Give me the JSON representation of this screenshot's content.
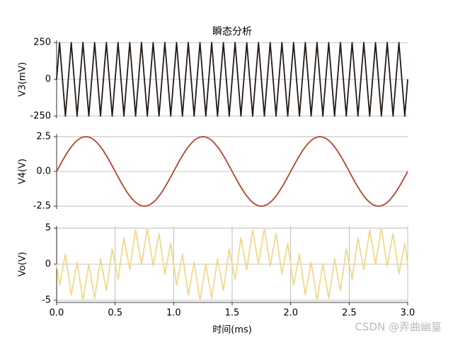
{
  "chart_data": {
    "type": "line",
    "title": "瞬态分析",
    "xlabel": "时间(ms)",
    "watermark": "CSDN @弄曲幽篁",
    "xlim": [
      0,
      3
    ],
    "xticks": [
      {
        "value": 0,
        "label": "0.0"
      },
      0.5,
      {
        "value": 1,
        "label": "1.0"
      },
      1.5,
      {
        "value": 2,
        "label": "2.0"
      },
      2.5,
      {
        "value": 3,
        "label": "3.0"
      }
    ],
    "x": [
      0,
      0.025,
      0.05,
      0.075,
      0.1,
      0.125,
      0.15,
      0.175,
      0.2,
      0.225,
      0.25,
      0.275,
      0.3,
      0.325,
      0.35,
      0.375,
      0.4,
      0.425,
      0.45,
      0.475,
      0.5,
      0.525,
      0.55,
      0.575,
      0.6,
      0.625,
      0.65,
      0.675,
      0.7,
      0.725,
      0.75,
      0.775,
      0.8,
      0.825,
      0.85,
      0.875,
      0.9,
      0.925,
      0.95,
      0.975,
      1,
      1.025,
      1.05,
      1.075,
      1.1,
      1.125,
      1.15,
      1.175,
      1.2,
      1.225,
      1.25,
      1.275,
      1.3,
      1.325,
      1.35,
      1.375,
      1.4,
      1.425,
      1.45,
      1.475,
      1.5,
      1.525,
      1.55,
      1.575,
      1.6,
      1.625,
      1.65,
      1.675,
      1.7,
      1.725,
      1.75,
      1.775,
      1.8,
      1.825,
      1.85,
      1.875,
      1.9,
      1.925,
      1.95,
      1.975,
      2,
      2.025,
      2.05,
      2.075,
      2.1,
      2.125,
      2.15,
      2.175,
      2.2,
      2.225,
      2.25,
      2.275,
      2.3,
      2.325,
      2.35,
      2.375,
      2.4,
      2.425,
      2.45,
      2.475,
      2.5,
      2.525,
      2.55,
      2.575,
      2.6,
      2.625,
      2.65,
      2.675,
      2.7,
      2.725,
      2.75,
      2.775,
      2.8,
      2.825,
      2.85,
      2.875,
      2.9,
      2.925,
      2.95,
      2.975,
      3
    ],
    "panels": [
      {
        "ylabel": "V3(mV)",
        "color": "#231a16",
        "ylim": [
          -265,
          265
        ],
        "yticks": [
          250,
          0,
          -250
        ],
        "grid": "y",
        "values": [
          0,
          250,
          0,
          -250,
          0,
          250,
          0,
          -250,
          0,
          250,
          0,
          -250,
          0,
          250,
          0,
          -250,
          0,
          250,
          0,
          -250,
          0,
          250,
          0,
          -250,
          0,
          250,
          0,
          -250,
          0,
          250,
          0,
          -250,
          0,
          250,
          0,
          -250,
          0,
          250,
          0,
          -250,
          0,
          250,
          0,
          -250,
          0,
          250,
          0,
          -250,
          0,
          250,
          0,
          -250,
          0,
          250,
          0,
          -250,
          0,
          250,
          0,
          -250,
          0,
          250,
          0,
          -250,
          0,
          250,
          0,
          -250,
          0,
          250,
          0,
          -250,
          0,
          250,
          0,
          -250,
          0,
          250,
          0,
          -250,
          0,
          250,
          0,
          -250,
          0,
          250,
          0,
          -250,
          0,
          250,
          0,
          -250,
          0,
          250,
          0,
          -250,
          0,
          250,
          0,
          -250,
          0,
          250,
          0,
          -250,
          0,
          250,
          0,
          -250,
          0,
          250,
          0,
          -250,
          0,
          250,
          0,
          -250,
          0,
          250,
          0,
          -250,
          0
        ]
      },
      {
        "ylabel": "V4(V)",
        "color": "#b5432c",
        "ylim": [
          -2.7,
          2.7
        ],
        "yticks": [
          2.5,
          {
            "value": 0,
            "label": "0.0"
          },
          -2.5
        ],
        "grid": "y",
        "values": [
          0,
          0.391,
          0.773,
          1.135,
          1.469,
          1.768,
          2.023,
          2.228,
          2.378,
          2.469,
          2.5,
          2.469,
          2.378,
          2.228,
          2.023,
          1.768,
          1.469,
          1.135,
          0.773,
          0.391,
          0,
          -0.391,
          -0.773,
          -1.135,
          -1.469,
          -1.768,
          -2.023,
          -2.228,
          -2.378,
          -2.469,
          -2.5,
          -2.469,
          -2.378,
          -2.228,
          -2.023,
          -1.768,
          -1.469,
          -1.135,
          -0.773,
          -0.391,
          0,
          0.391,
          0.773,
          1.135,
          1.469,
          1.768,
          2.023,
          2.228,
          2.378,
          2.469,
          2.5,
          2.469,
          2.378,
          2.228,
          2.023,
          1.768,
          1.469,
          1.135,
          0.773,
          0.391,
          0,
          -0.391,
          -0.773,
          -1.135,
          -1.469,
          -1.768,
          -2.023,
          -2.228,
          -2.378,
          -2.469,
          -2.5,
          -2.469,
          -2.378,
          -2.228,
          -2.023,
          -1.768,
          -1.469,
          -1.135,
          -0.773,
          -0.391,
          0,
          0.391,
          0.773,
          1.135,
          1.469,
          1.768,
          2.023,
          2.228,
          2.378,
          2.469,
          2.5,
          2.469,
          2.378,
          2.228,
          2.023,
          1.768,
          1.469,
          1.135,
          0.773,
          0.391,
          0,
          -0.391,
          -0.773,
          -1.135,
          -1.469,
          -1.768,
          -2.023,
          -2.228,
          -2.378,
          -2.469,
          -2.5,
          -2.469,
          -2.378,
          -2.228,
          -2.023,
          -1.768,
          -1.469,
          -1.135,
          -0.773,
          -0.391,
          0
        ]
      },
      {
        "ylabel": "Vo(V)",
        "color": "#f0d98c",
        "ylim": [
          -5.3,
          5.3
        ],
        "yticks": [
          5,
          0,
          -5
        ],
        "grid": "both",
        "values": [
          0,
          -2.891,
          -0.773,
          1.365,
          -1.469,
          -4.268,
          -2.023,
          0.272,
          -2.378,
          -4.969,
          -2.5,
          0.031,
          -2.378,
          -4.728,
          -2.023,
          0.732,
          -1.469,
          -3.635,
          -0.773,
          2.109,
          0,
          -2.109,
          0.773,
          3.635,
          1.469,
          -0.732,
          2.023,
          4.728,
          2.378,
          -0.031,
          2.5,
          4.969,
          2.378,
          -0.272,
          2.023,
          4.268,
          1.469,
          -1.365,
          0.773,
          2.891,
          0,
          -2.891,
          -0.773,
          1.365,
          -1.469,
          -4.268,
          -2.023,
          0.272,
          -2.378,
          -4.969,
          -2.5,
          0.031,
          -2.378,
          -4.728,
          -2.023,
          0.732,
          -1.469,
          -3.635,
          -0.773,
          2.109,
          0,
          -2.109,
          0.773,
          3.635,
          1.469,
          -0.732,
          2.023,
          4.728,
          2.378,
          -0.031,
          2.5,
          4.969,
          2.378,
          -0.272,
          2.023,
          4.268,
          1.469,
          -1.365,
          0.773,
          2.891,
          0,
          -2.891,
          -0.773,
          1.365,
          -1.469,
          -4.268,
          -2.023,
          0.272,
          -2.378,
          -4.969,
          -2.5,
          0.031,
          -2.378,
          -4.728,
          -2.023,
          0.732,
          -1.469,
          -3.635,
          -0.773,
          2.109,
          0,
          -2.109,
          0.773,
          3.635,
          1.469,
          -0.732,
          2.023,
          4.728,
          2.378,
          -0.031,
          2.5,
          4.969,
          2.378,
          -0.272,
          2.023,
          4.268,
          1.469,
          -1.365,
          0.773,
          2.891,
          0
        ]
      }
    ]
  }
}
